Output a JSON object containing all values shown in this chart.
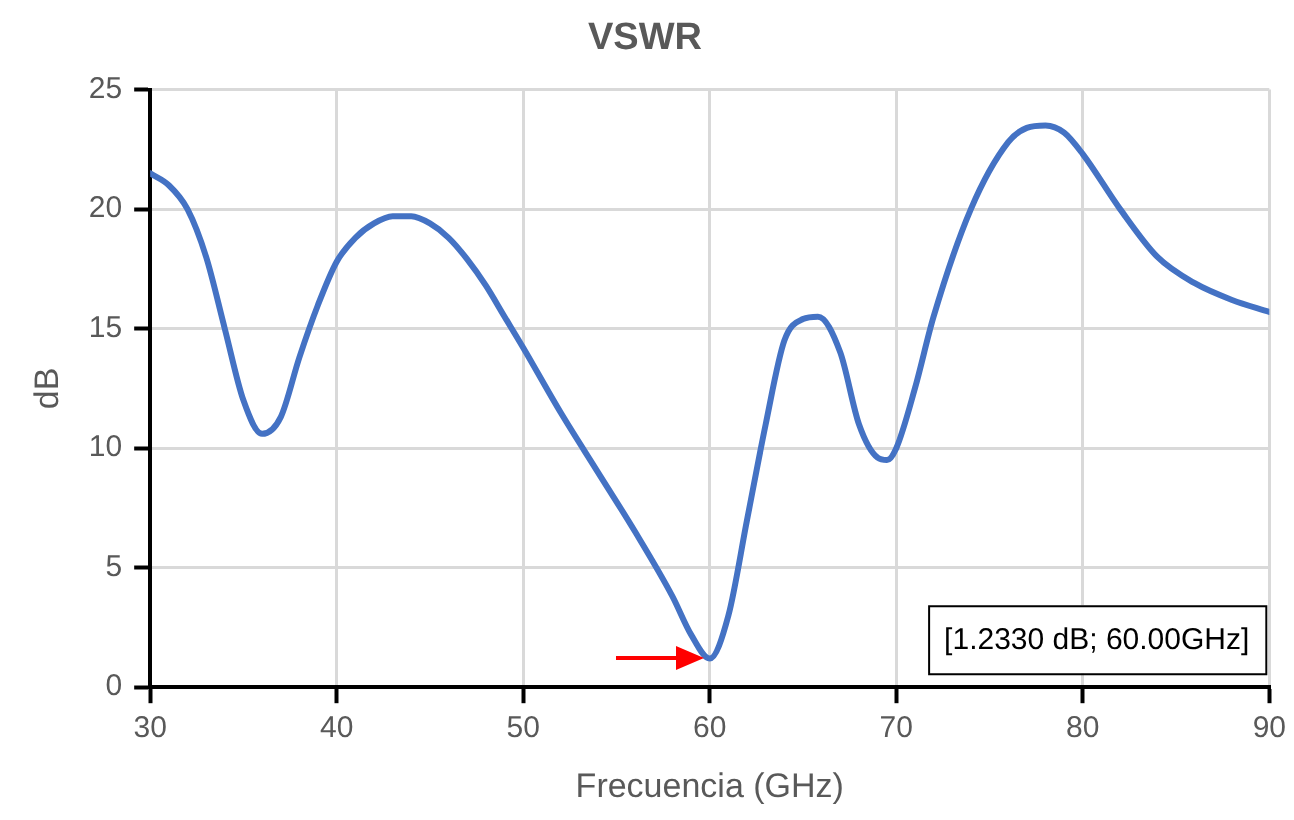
{
  "chart_data": {
    "type": "line",
    "title": "VSWR",
    "xlabel": "Frecuencia (GHz)",
    "ylabel": "dB",
    "x": [
      30,
      31,
      32,
      33,
      34,
      35,
      36,
      37,
      38,
      39,
      40,
      41,
      42,
      43,
      44,
      45,
      46,
      47,
      48,
      49,
      50,
      52,
      54,
      56,
      58,
      59,
      60,
      61,
      62,
      63,
      64,
      65,
      65.8,
      67,
      68,
      69,
      69.5,
      70,
      71,
      72,
      74,
      76,
      77,
      78,
      79,
      80,
      82,
      84,
      86,
      88,
      90
    ],
    "series": [
      {
        "color": "#4472c4",
        "values": [
          21.5,
          21,
          20,
          18,
          15,
          12,
          10.6,
          11.3,
          13.8,
          16,
          17.8,
          18.8,
          19.4,
          19.7,
          19.7,
          19.4,
          18.8,
          17.9,
          16.8,
          15.5,
          14.2,
          11.5,
          9,
          6.5,
          3.8,
          2.2,
          1.2,
          3,
          7,
          11,
          14.5,
          15.4,
          15.5,
          14,
          11,
          9.6,
          9.5,
          10,
          12.5,
          15.5,
          20,
          22.8,
          23.4,
          23.5,
          23.2,
          22.3,
          20,
          18,
          16.9,
          16.2,
          15.7
        ]
      }
    ],
    "xlim": [
      30,
      90
    ],
    "xticks": [
      30,
      40,
      50,
      60,
      70,
      80,
      90
    ],
    "ylim": [
      0,
      25
    ],
    "yticks": [
      0,
      5,
      10,
      15,
      20,
      25
    ],
    "grid": true,
    "legend": false,
    "marker": "none",
    "line_style": "solid",
    "annotations": [
      "[1.2330 dB; 60.00GHz]"
    ]
  }
}
